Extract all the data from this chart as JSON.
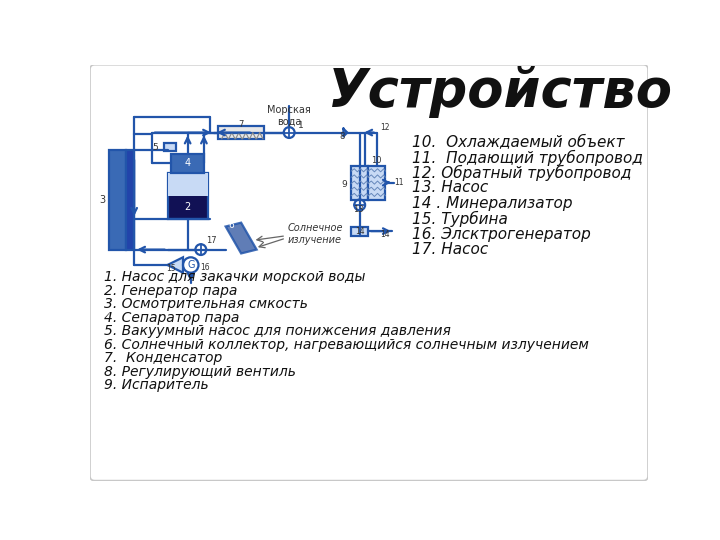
{
  "title": "Устройство",
  "background_color": "#ffffff",
  "border_color": "#c8c8c8",
  "title_fontsize": 38,
  "title_style": "italic",
  "title_weight": "bold",
  "left_labels": [
    "1. Насос для закачки морской воды",
    "2. Генератор пара",
    "3. Осмотрительная смкость",
    "4. Сепаратор пара",
    "5. Вакуумный насос для понижсения давления",
    "6. Солнечный коллектор, нагревающийся солнечным излучением",
    "7.  Конденсатор",
    "8. Регулирующий вентиль",
    "9. Испаритель"
  ],
  "right_labels": [
    "10.  Охлаждаемый объект",
    "11.  Подающий трубопровод",
    "12. Обратный трубопровод",
    "13. Насос",
    "14 . Минерализатор",
    "15. Турбина",
    "16. Элсктрогенератор",
    "17. Насос"
  ],
  "label_fontsize": 11,
  "diagram_color": "#2255aa",
  "diagram_color2": "#4477cc",
  "fill_blue": "#3a6ab5",
  "fill_light": "#c8daf5",
  "fill_mid": "#5580bb"
}
